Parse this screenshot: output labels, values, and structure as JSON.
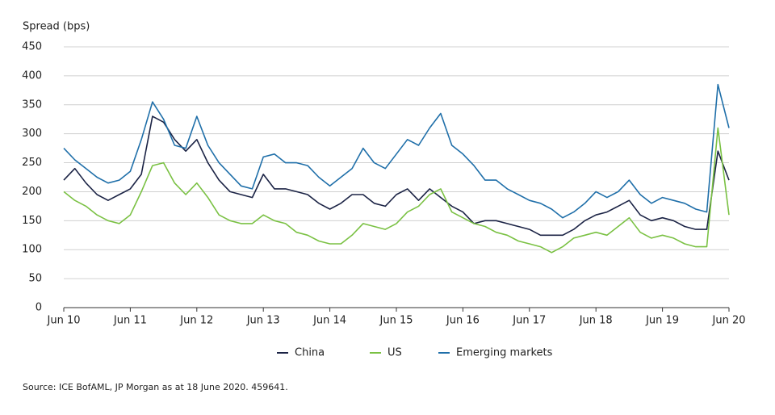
{
  "chart_data": {
    "type": "line",
    "y_label": "Spread (bps)",
    "source": "Source: ICE BofAML, JP Morgan as at 18 June 2020. 459641.",
    "categories": [
      "Jun 10",
      null,
      null,
      null,
      null,
      null,
      "Jun 11",
      null,
      null,
      null,
      null,
      null,
      "Jun 12",
      null,
      null,
      null,
      null,
      null,
      "Jun 13",
      null,
      null,
      null,
      null,
      null,
      "Jun 14",
      null,
      null,
      null,
      null,
      null,
      "Jun 15",
      null,
      null,
      null,
      null,
      null,
      "Jun 16",
      null,
      null,
      null,
      null,
      null,
      "Jun 17",
      null,
      null,
      null,
      null,
      null,
      "Jun 18",
      null,
      null,
      null,
      null,
      null,
      "Jun 19",
      null,
      null,
      null,
      null,
      null,
      "Jun 20"
    ],
    "series": [
      {
        "name": "China",
        "color": "#1b2345",
        "values": [
          220,
          240,
          215,
          195,
          185,
          195,
          205,
          230,
          330,
          320,
          290,
          270,
          290,
          250,
          220,
          200,
          195,
          190,
          230,
          205,
          205,
          200,
          195,
          180,
          170,
          180,
          195,
          195,
          180,
          175,
          195,
          205,
          185,
          205,
          190,
          175,
          165,
          145,
          150,
          150,
          145,
          140,
          135,
          125,
          125,
          125,
          135,
          150,
          160,
          165,
          175,
          185,
          160,
          150,
          155,
          150,
          140,
          135,
          135,
          270,
          220
        ]
      },
      {
        "name": "US",
        "color": "#7ac143",
        "values": [
          200,
          185,
          175,
          160,
          150,
          145,
          160,
          200,
          245,
          250,
          215,
          195,
          215,
          190,
          160,
          150,
          145,
          145,
          160,
          150,
          145,
          130,
          125,
          115,
          110,
          110,
          125,
          145,
          140,
          135,
          145,
          165,
          175,
          195,
          205,
          165,
          155,
          145,
          140,
          130,
          125,
          115,
          110,
          105,
          95,
          105,
          120,
          125,
          130,
          125,
          140,
          155,
          130,
          120,
          125,
          120,
          110,
          105,
          105,
          310,
          160
        ]
      },
      {
        "name": "Emerging markets",
        "color": "#1f6fa9",
        "values": [
          275,
          255,
          240,
          225,
          215,
          220,
          235,
          290,
          355,
          325,
          280,
          275,
          330,
          280,
          250,
          230,
          210,
          205,
          260,
          265,
          250,
          250,
          245,
          225,
          210,
          225,
          240,
          275,
          250,
          240,
          265,
          290,
          280,
          310,
          335,
          280,
          265,
          245,
          220,
          220,
          205,
          195,
          185,
          180,
          170,
          155,
          165,
          180,
          200,
          190,
          200,
          220,
          195,
          180,
          190,
          185,
          180,
          170,
          165,
          385,
          310
        ]
      }
    ],
    "ylim": [
      0,
      450
    ],
    "yticks": [
      0,
      50,
      100,
      150,
      200,
      250,
      300,
      350,
      400,
      450
    ],
    "grid": true,
    "legend": "bottom"
  }
}
